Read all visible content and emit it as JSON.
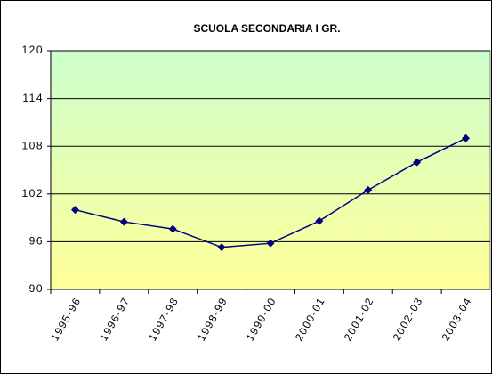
{
  "chart_data": {
    "type": "line",
    "title": "SCUOLA SECONDARIA I GR.",
    "categories": [
      "1995-96",
      "1996-97",
      "1997-98",
      "1998-99",
      "1999-00",
      "2000-01",
      "2001-02",
      "2002-03",
      "2003-04"
    ],
    "series": [
      {
        "name": "SCUOLA SECONDARIA I GR.",
        "color": "#000080",
        "values": [
          100,
          98.5,
          97.6,
          95.3,
          95.8,
          98.6,
          102.5,
          106,
          109
        ]
      }
    ],
    "ylim": [
      90,
      120
    ],
    "yticks": [
      90,
      96,
      102,
      108,
      114,
      120
    ],
    "grid": true
  }
}
